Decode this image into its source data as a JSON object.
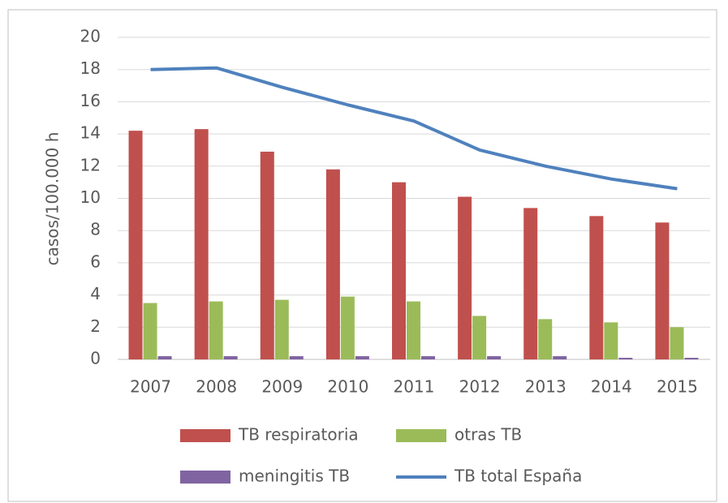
{
  "chart_data": {
    "type": "bar",
    "y_label": "casos/100.000 h",
    "categories": [
      "2007",
      "2008",
      "2009",
      "2010",
      "2011",
      "2012",
      "2013",
      "2014",
      "2015"
    ],
    "series": [
      {
        "name": "TB respiratoria",
        "color": "#c0504d",
        "type": "bar",
        "values": [
          14.2,
          14.3,
          12.9,
          11.8,
          11.0,
          10.1,
          9.4,
          8.9,
          8.5
        ]
      },
      {
        "name": "otras TB",
        "color": "#9bbb59",
        "type": "bar",
        "values": [
          3.5,
          3.6,
          3.7,
          3.9,
          3.6,
          2.7,
          2.5,
          2.3,
          2.0
        ]
      },
      {
        "name": "meningitis TB",
        "color": "#8064a2",
        "type": "bar",
        "values": [
          0.2,
          0.2,
          0.2,
          0.2,
          0.2,
          0.2,
          0.2,
          0.1,
          0.1
        ]
      },
      {
        "name": "TB total España",
        "color": "#4f81bd",
        "type": "line",
        "values": [
          18.0,
          18.1,
          16.9,
          15.8,
          14.8,
          13.0,
          12.0,
          11.2,
          10.6
        ]
      }
    ],
    "ylim": [
      0,
      20
    ],
    "yticks": [
      0,
      2,
      4,
      6,
      8,
      10,
      12,
      14,
      16,
      18,
      20
    ],
    "grid": true,
    "legend": "bottom"
  }
}
